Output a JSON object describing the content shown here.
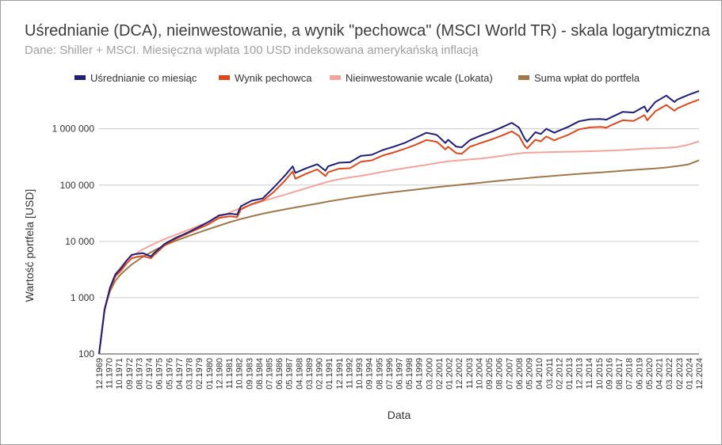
{
  "title": "Uśrednianie (DCA), nieinwestowanie, a wynik \"pechowca\" (MSCI World TR) - skala logarytmiczna",
  "subtitle": "Dane: Shiller + MSCI. Miesięczna wpłata 100 USD indeksowana amerykańską inflacją",
  "chart_data": {
    "type": "line",
    "xlabel": "Data",
    "ylabel": "Wartość portfela [USD]",
    "yscale": "log",
    "ylim": [
      100,
      5000000
    ],
    "grid": true,
    "legend_position": "top",
    "y_ticks": [
      {
        "value": 100,
        "label": "100"
      },
      {
        "value": 1000,
        "label": "1 000"
      },
      {
        "value": 10000,
        "label": "10 000"
      },
      {
        "value": 100000,
        "label": "100 000"
      },
      {
        "value": 1000000,
        "label": "1 000 000"
      }
    ],
    "x_ticks": [
      "12.1969",
      "11.1970",
      "10.1971",
      "09.1972",
      "08.1973",
      "07.1974",
      "06.1975",
      "05.1976",
      "04.1977",
      "03.1978",
      "02.1979",
      "01.1980",
      "12.1980",
      "11.1981",
      "10.1982",
      "09.1983",
      "08.1984",
      "07.1985",
      "06.1986",
      "05.1987",
      "04.1988",
      "03.1989",
      "02.1990",
      "01.1991",
      "12.1991",
      "11.1992",
      "10.1993",
      "09.1994",
      "08.1995",
      "07.1996",
      "06.1997",
      "05.1998",
      "04.1999",
      "03.2000",
      "02.2001",
      "01.2002",
      "12.2002",
      "11.2003",
      "10.2004",
      "09.2005",
      "08.2006",
      "07.2007",
      "06.2008",
      "05.2009",
      "04.2010",
      "03.2011",
      "02.2012",
      "01.2013",
      "12.2013",
      "11.2014",
      "10.2015",
      "09.2016",
      "08.2017",
      "07.2018",
      "06.2019",
      "05.2020",
      "04.2021",
      "03.2022",
      "02.2023",
      "01.2024",
      "12.2024"
    ],
    "x_start": "12.1969",
    "x_end": "12.2024",
    "series": [
      {
        "name": "Uśrednianie co miesiąc",
        "color": "#1f1f7a",
        "points": [
          [
            "12.1969",
            100
          ],
          [
            "06.1970",
            600
          ],
          [
            "12.1970",
            1500
          ],
          [
            "06.1971",
            2600
          ],
          [
            "12.1971",
            3300
          ],
          [
            "06.1972",
            4500
          ],
          [
            "12.1972",
            5800
          ],
          [
            "06.1973",
            6000
          ],
          [
            "12.1973",
            6200
          ],
          [
            "09.1974",
            5400
          ],
          [
            "12.1974",
            6100
          ],
          [
            "12.1975",
            9000
          ],
          [
            "12.1976",
            11500
          ],
          [
            "12.1977",
            14000
          ],
          [
            "12.1978",
            17500
          ],
          [
            "12.1979",
            22000
          ],
          [
            "12.1980",
            29000
          ],
          [
            "12.1981",
            31000
          ],
          [
            "08.1982",
            30000
          ],
          [
            "12.1982",
            42000
          ],
          [
            "12.1983",
            53000
          ],
          [
            "12.1984",
            58000
          ],
          [
            "12.1985",
            90000
          ],
          [
            "12.1986",
            145000
          ],
          [
            "09.1987",
            215000
          ],
          [
            "12.1987",
            165000
          ],
          [
            "12.1988",
            200000
          ],
          [
            "12.1989",
            235000
          ],
          [
            "09.1990",
            180000
          ],
          [
            "12.1990",
            215000
          ],
          [
            "12.1991",
            250000
          ],
          [
            "12.1992",
            255000
          ],
          [
            "12.1993",
            330000
          ],
          [
            "12.1994",
            345000
          ],
          [
            "12.1995",
            420000
          ],
          [
            "12.1996",
            480000
          ],
          [
            "12.1997",
            560000
          ],
          [
            "12.1998",
            690000
          ],
          [
            "12.1999",
            850000
          ],
          [
            "09.2000",
            800000
          ],
          [
            "12.2000",
            770000
          ],
          [
            "09.2001",
            560000
          ],
          [
            "12.2001",
            640000
          ],
          [
            "09.2002",
            480000
          ],
          [
            "03.2003",
            470000
          ],
          [
            "12.2003",
            630000
          ],
          [
            "12.2004",
            760000
          ],
          [
            "12.2005",
            890000
          ],
          [
            "12.2006",
            1080000
          ],
          [
            "10.2007",
            1280000
          ],
          [
            "06.2008",
            1050000
          ],
          [
            "12.2008",
            680000
          ],
          [
            "03.2009",
            590000
          ],
          [
            "12.2009",
            870000
          ],
          [
            "06.2010",
            810000
          ],
          [
            "12.2010",
            1000000
          ],
          [
            "09.2011",
            850000
          ],
          [
            "12.2011",
            900000
          ],
          [
            "12.2012",
            1080000
          ],
          [
            "12.2013",
            1360000
          ],
          [
            "12.2014",
            1480000
          ],
          [
            "12.2015",
            1500000
          ],
          [
            "06.2016",
            1450000
          ],
          [
            "12.2016",
            1620000
          ],
          [
            "12.2017",
            2000000
          ],
          [
            "12.2018",
            1950000
          ],
          [
            "12.2019",
            2500000
          ],
          [
            "03.2020",
            2000000
          ],
          [
            "12.2020",
            3000000
          ],
          [
            "12.2021",
            3900000
          ],
          [
            "09.2022",
            3000000
          ],
          [
            "12.2022",
            3300000
          ],
          [
            "12.2023",
            4000000
          ],
          [
            "12.2024",
            4700000
          ]
        ]
      },
      {
        "name": "Wynik pechowca",
        "color": "#e0481c",
        "points": [
          [
            "12.1969",
            100
          ],
          [
            "06.1970",
            600
          ],
          [
            "12.1970",
            1400
          ],
          [
            "06.1971",
            2400
          ],
          [
            "12.1971",
            3000
          ],
          [
            "06.1972",
            4000
          ],
          [
            "12.1972",
            5000
          ],
          [
            "06.1973",
            5300
          ],
          [
            "12.1973",
            5500
          ],
          [
            "09.1974",
            5000
          ],
          [
            "12.1974",
            5600
          ],
          [
            "12.1975",
            8500
          ],
          [
            "12.1976",
            11000
          ],
          [
            "12.1977",
            13500
          ],
          [
            "12.1978",
            16500
          ],
          [
            "12.1979",
            20000
          ],
          [
            "12.1980",
            26000
          ],
          [
            "12.1981",
            28000
          ],
          [
            "08.1982",
            27000
          ],
          [
            "12.1982",
            37000
          ],
          [
            "12.1983",
            46000
          ],
          [
            "12.1984",
            53000
          ],
          [
            "12.1985",
            75000
          ],
          [
            "12.1986",
            118000
          ],
          [
            "09.1987",
            175000
          ],
          [
            "12.1987",
            130000
          ],
          [
            "12.1988",
            160000
          ],
          [
            "12.1989",
            190000
          ],
          [
            "09.1990",
            145000
          ],
          [
            "12.1990",
            170000
          ],
          [
            "12.1991",
            195000
          ],
          [
            "12.1992",
            200000
          ],
          [
            "12.1993",
            260000
          ],
          [
            "12.1994",
            275000
          ],
          [
            "12.1995",
            335000
          ],
          [
            "12.1996",
            380000
          ],
          [
            "12.1997",
            440000
          ],
          [
            "12.1998",
            520000
          ],
          [
            "12.1999",
            630000
          ],
          [
            "09.2000",
            600000
          ],
          [
            "12.2000",
            580000
          ],
          [
            "09.2001",
            430000
          ],
          [
            "12.2001",
            480000
          ],
          [
            "09.2002",
            370000
          ],
          [
            "03.2003",
            360000
          ],
          [
            "12.2003",
            480000
          ],
          [
            "12.2004",
            560000
          ],
          [
            "12.2005",
            650000
          ],
          [
            "12.2006",
            770000
          ],
          [
            "10.2007",
            900000
          ],
          [
            "06.2008",
            750000
          ],
          [
            "12.2008",
            500000
          ],
          [
            "03.2009",
            450000
          ],
          [
            "12.2009",
            640000
          ],
          [
            "06.2010",
            600000
          ],
          [
            "12.2010",
            730000
          ],
          [
            "09.2011",
            620000
          ],
          [
            "12.2011",
            660000
          ],
          [
            "12.2012",
            780000
          ],
          [
            "12.2013",
            980000
          ],
          [
            "12.2014",
            1060000
          ],
          [
            "12.2015",
            1080000
          ],
          [
            "06.2016",
            1050000
          ],
          [
            "12.2016",
            1170000
          ],
          [
            "12.2017",
            1420000
          ],
          [
            "12.2018",
            1380000
          ],
          [
            "12.2019",
            1750000
          ],
          [
            "03.2020",
            1420000
          ],
          [
            "12.2020",
            2050000
          ],
          [
            "12.2021",
            2650000
          ],
          [
            "09.2022",
            2100000
          ],
          [
            "12.2022",
            2300000
          ],
          [
            "12.2023",
            2800000
          ],
          [
            "12.2024",
            3300000
          ]
        ]
      },
      {
        "name": "Nieinwestowanie wcale (Lokata)",
        "color": "#f4a49a",
        "points": [
          [
            "12.1969",
            100
          ],
          [
            "06.1970",
            650
          ],
          [
            "12.1970",
            1500
          ],
          [
            "06.1971",
            2600
          ],
          [
            "12.1971",
            3500
          ],
          [
            "06.1972",
            4500
          ],
          [
            "12.1972",
            5500
          ],
          [
            "12.1973",
            7200
          ],
          [
            "12.1974",
            9000
          ],
          [
            "12.1975",
            11000
          ],
          [
            "12.1976",
            13000
          ],
          [
            "12.1977",
            15500
          ],
          [
            "12.1978",
            18500
          ],
          [
            "12.1979",
            22000
          ],
          [
            "12.1980",
            27000
          ],
          [
            "12.1981",
            33000
          ],
          [
            "12.1982",
            39000
          ],
          [
            "12.1983",
            45000
          ],
          [
            "12.1984",
            52000
          ],
          [
            "12.1985",
            59000
          ],
          [
            "12.1986",
            67000
          ],
          [
            "12.1987",
            77000
          ],
          [
            "12.1988",
            88000
          ],
          [
            "12.1989",
            101000
          ],
          [
            "12.1990",
            115000
          ],
          [
            "12.1991",
            127000
          ],
          [
            "12.1992",
            137000
          ],
          [
            "12.1993",
            146000
          ],
          [
            "12.1994",
            158000
          ],
          [
            "12.1995",
            172000
          ],
          [
            "12.1996",
            186000
          ],
          [
            "12.1997",
            200000
          ],
          [
            "12.1998",
            214000
          ],
          [
            "12.1999",
            229000
          ],
          [
            "12.2000",
            248000
          ],
          [
            "12.2001",
            264000
          ],
          [
            "12.2002",
            275000
          ],
          [
            "12.2003",
            285000
          ],
          [
            "12.2004",
            296000
          ],
          [
            "12.2005",
            312000
          ],
          [
            "12.2006",
            333000
          ],
          [
            "12.2007",
            356000
          ],
          [
            "12.2008",
            375000
          ],
          [
            "12.2009",
            380000
          ],
          [
            "12.2011",
            388000
          ],
          [
            "12.2013",
            395000
          ],
          [
            "12.2015",
            405000
          ],
          [
            "12.2017",
            420000
          ],
          [
            "12.2019",
            445000
          ],
          [
            "12.2021",
            460000
          ],
          [
            "12.2022",
            475000
          ],
          [
            "12.2023",
            520000
          ],
          [
            "12.2024",
            600000
          ]
        ]
      },
      {
        "name": "Suma wpłat do portfela",
        "color": "#a0784a",
        "points": [
          [
            "12.1969",
            100
          ],
          [
            "06.1970",
            650
          ],
          [
            "12.1970",
            1300
          ],
          [
            "06.1971",
            2000
          ],
          [
            "12.1971",
            2600
          ],
          [
            "06.1972",
            3200
          ],
          [
            "12.1972",
            3900
          ],
          [
            "12.1973",
            5300
          ],
          [
            "12.1974",
            6800
          ],
          [
            "12.1975",
            8500
          ],
          [
            "12.1976",
            10200
          ],
          [
            "12.1977",
            12000
          ],
          [
            "12.1978",
            14100
          ],
          [
            "12.1979",
            16400
          ],
          [
            "12.1980",
            19000
          ],
          [
            "12.1981",
            22000
          ],
          [
            "12.1982",
            25000
          ],
          [
            "12.1983",
            28000
          ],
          [
            "12.1984",
            31000
          ],
          [
            "12.1985",
            34000
          ],
          [
            "12.1986",
            37000
          ],
          [
            "12.1987",
            40000
          ],
          [
            "12.1988",
            43500
          ],
          [
            "12.1989",
            47000
          ],
          [
            "12.1990",
            51000
          ],
          [
            "12.1991",
            55000
          ],
          [
            "12.1992",
            59000
          ],
          [
            "12.1993",
            63000
          ],
          [
            "12.1994",
            67000
          ],
          [
            "12.1995",
            71000
          ],
          [
            "12.1996",
            75000
          ],
          [
            "12.1997",
            79000
          ],
          [
            "12.1998",
            83000
          ],
          [
            "12.1999",
            87500
          ],
          [
            "12.2000",
            92000
          ],
          [
            "12.2001",
            96500
          ],
          [
            "12.2002",
            101000
          ],
          [
            "12.2003",
            105500
          ],
          [
            "12.2004",
            110500
          ],
          [
            "12.2005",
            115500
          ],
          [
            "12.2006",
            121000
          ],
          [
            "12.2007",
            126500
          ],
          [
            "12.2008",
            132000
          ],
          [
            "12.2009",
            137000
          ],
          [
            "12.2010",
            142000
          ],
          [
            "12.2011",
            147500
          ],
          [
            "12.2012",
            153000
          ],
          [
            "12.2013",
            158000
          ],
          [
            "12.2014",
            163500
          ],
          [
            "12.2015",
            168500
          ],
          [
            "12.2016",
            174000
          ],
          [
            "12.2017",
            180000
          ],
          [
            "12.2018",
            186000
          ],
          [
            "12.2019",
            192000
          ],
          [
            "12.2020",
            198000
          ],
          [
            "12.2021",
            206000
          ],
          [
            "12.2022",
            217000
          ],
          [
            "12.2023",
            232000
          ],
          [
            "12.2024",
            276000
          ]
        ]
      }
    ]
  }
}
